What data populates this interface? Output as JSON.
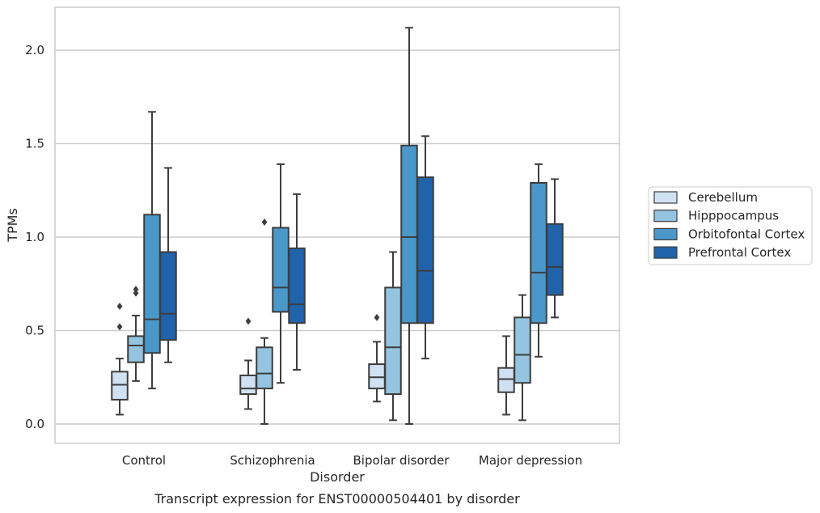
{
  "chart_data": {
    "type": "box",
    "title": "",
    "caption": "Transcript expression for ENST00000504401 by disorder",
    "xlabel": "Disorder",
    "ylabel": "TPMs",
    "ylim": [
      -0.1,
      2.23
    ],
    "yticks": [
      {
        "value": 0.0,
        "label": "0.0"
      },
      {
        "value": 0.5,
        "label": "0.5"
      },
      {
        "value": 1.0,
        "label": "1.0"
      },
      {
        "value": 1.5,
        "label": "1.5"
      },
      {
        "value": 2.0,
        "label": "2.0"
      }
    ],
    "grid": "horizontal",
    "legend_position": "right",
    "categories": [
      "Control",
      "Schizophrenia",
      "Bipolar disorder",
      "Major depression"
    ],
    "series": [
      {
        "name": "Cerebellum",
        "color": "#d0e1f2",
        "boxes": [
          {
            "whisker_low": 0.05,
            "q1": 0.13,
            "median": 0.21,
            "q3": 0.28,
            "whisker_high": 0.35,
            "outliers": [
              0.52,
              0.63
            ]
          },
          {
            "whisker_low": 0.08,
            "q1": 0.16,
            "median": 0.19,
            "q3": 0.26,
            "whisker_high": 0.34,
            "outliers": [
              0.55
            ]
          },
          {
            "whisker_low": 0.12,
            "q1": 0.19,
            "median": 0.25,
            "q3": 0.32,
            "whisker_high": 0.44,
            "outliers": [
              0.57
            ]
          },
          {
            "whisker_low": 0.05,
            "q1": 0.17,
            "median": 0.24,
            "q3": 0.3,
            "whisker_high": 0.47,
            "outliers": []
          }
        ]
      },
      {
        "name": "Hipppocampus",
        "color": "#94c4df",
        "boxes": [
          {
            "whisker_low": 0.23,
            "q1": 0.33,
            "median": 0.42,
            "q3": 0.47,
            "whisker_high": 0.58,
            "outliers": [
              0.7,
              0.72
            ]
          },
          {
            "whisker_low": 0.0,
            "q1": 0.19,
            "median": 0.27,
            "q3": 0.41,
            "whisker_high": 0.46,
            "outliers": [
              1.08
            ]
          },
          {
            "whisker_low": 0.02,
            "q1": 0.16,
            "median": 0.41,
            "q3": 0.73,
            "whisker_high": 0.92,
            "outliers": []
          },
          {
            "whisker_low": 0.02,
            "q1": 0.22,
            "median": 0.37,
            "q3": 0.57,
            "whisker_high": 0.69,
            "outliers": []
          }
        ]
      },
      {
        "name": "Orbitofontal Cortex",
        "color": "#4a98c9",
        "boxes": [
          {
            "whisker_low": 0.19,
            "q1": 0.38,
            "median": 0.56,
            "q3": 1.12,
            "whisker_high": 1.67,
            "outliers": []
          },
          {
            "whisker_low": 0.22,
            "q1": 0.6,
            "median": 0.73,
            "q3": 1.05,
            "whisker_high": 1.39,
            "outliers": []
          },
          {
            "whisker_low": 0.0,
            "q1": 0.54,
            "median": 1.0,
            "q3": 1.49,
            "whisker_high": 2.12,
            "outliers": []
          },
          {
            "whisker_low": 0.36,
            "q1": 0.54,
            "median": 0.81,
            "q3": 1.29,
            "whisker_high": 1.39,
            "outliers": []
          }
        ]
      },
      {
        "name": "Prefrontal Cortex",
        "color": "#2163aa",
        "boxes": [
          {
            "whisker_low": 0.33,
            "q1": 0.45,
            "median": 0.59,
            "q3": 0.92,
            "whisker_high": 1.37,
            "outliers": []
          },
          {
            "whisker_low": 0.29,
            "q1": 0.54,
            "median": 0.64,
            "q3": 0.94,
            "whisker_high": 1.23,
            "outliers": []
          },
          {
            "whisker_low": 0.35,
            "q1": 0.54,
            "median": 0.82,
            "q3": 1.32,
            "whisker_high": 1.54,
            "outliers": []
          },
          {
            "whisker_low": 0.57,
            "q1": 0.69,
            "median": 0.84,
            "q3": 1.07,
            "whisker_high": 1.31,
            "outliers": []
          }
        ]
      }
    ]
  }
}
